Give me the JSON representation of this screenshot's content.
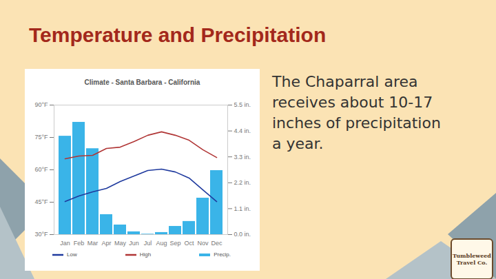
{
  "slide": {
    "title": "Temperature and Precipitation",
    "text": "The Chaparral area receives about 10-17 inches of precipitation a year.",
    "logo": "Tumbleweed Travel Co."
  },
  "chart_data": {
    "type": "bar",
    "title": "Climate - Santa Barbara - California",
    "categories": [
      "Jan",
      "Feb",
      "Mar",
      "Apr",
      "May",
      "Jun",
      "Jul",
      "Aug",
      "Sep",
      "Oct",
      "Nov",
      "Dec"
    ],
    "series": [
      {
        "name": "Low",
        "type": "line",
        "color": "#1f3a9e",
        "values": [
          45.3,
          47.9,
          49.8,
          51.4,
          54.6,
          57.1,
          59.7,
          60.3,
          59.0,
          56.2,
          50.7,
          45.3
        ]
      },
      {
        "name": "High",
        "type": "line",
        "color": "#b03535",
        "values": [
          65.1,
          66.4,
          66.7,
          69.9,
          70.5,
          73.1,
          76.0,
          77.6,
          76.0,
          73.7,
          69.3,
          65.7
        ]
      },
      {
        "name": "Precip.",
        "type": "bar",
        "axis": "y2",
        "color": "#3ab4e8",
        "values": [
          4.18,
          4.77,
          3.65,
          0.85,
          0.41,
          0.12,
          0.02,
          0.09,
          0.35,
          0.56,
          1.55,
          2.72
        ]
      }
    ],
    "ylim": [
      30,
      90
    ],
    "yticks": [
      {
        "value": 30,
        "label": "30°F"
      },
      {
        "value": 45,
        "label": "45°F"
      },
      {
        "value": 60,
        "label": "60°F"
      },
      {
        "value": 75,
        "label": "75°F"
      },
      {
        "value": 90,
        "label": "90°F"
      }
    ],
    "y2lim": [
      0,
      5.5
    ],
    "y2ticks": [
      {
        "value": 0,
        "label": "0.0 in."
      },
      {
        "value": 1.1,
        "label": "1.1 in."
      },
      {
        "value": 2.2,
        "label": "2.2 in."
      },
      {
        "value": 3.3,
        "label": "3.3 in."
      },
      {
        "value": 4.4,
        "label": "4.4 in."
      },
      {
        "value": 5.5,
        "label": "5.5 in."
      }
    ],
    "grid": false,
    "legend": "bottom"
  }
}
